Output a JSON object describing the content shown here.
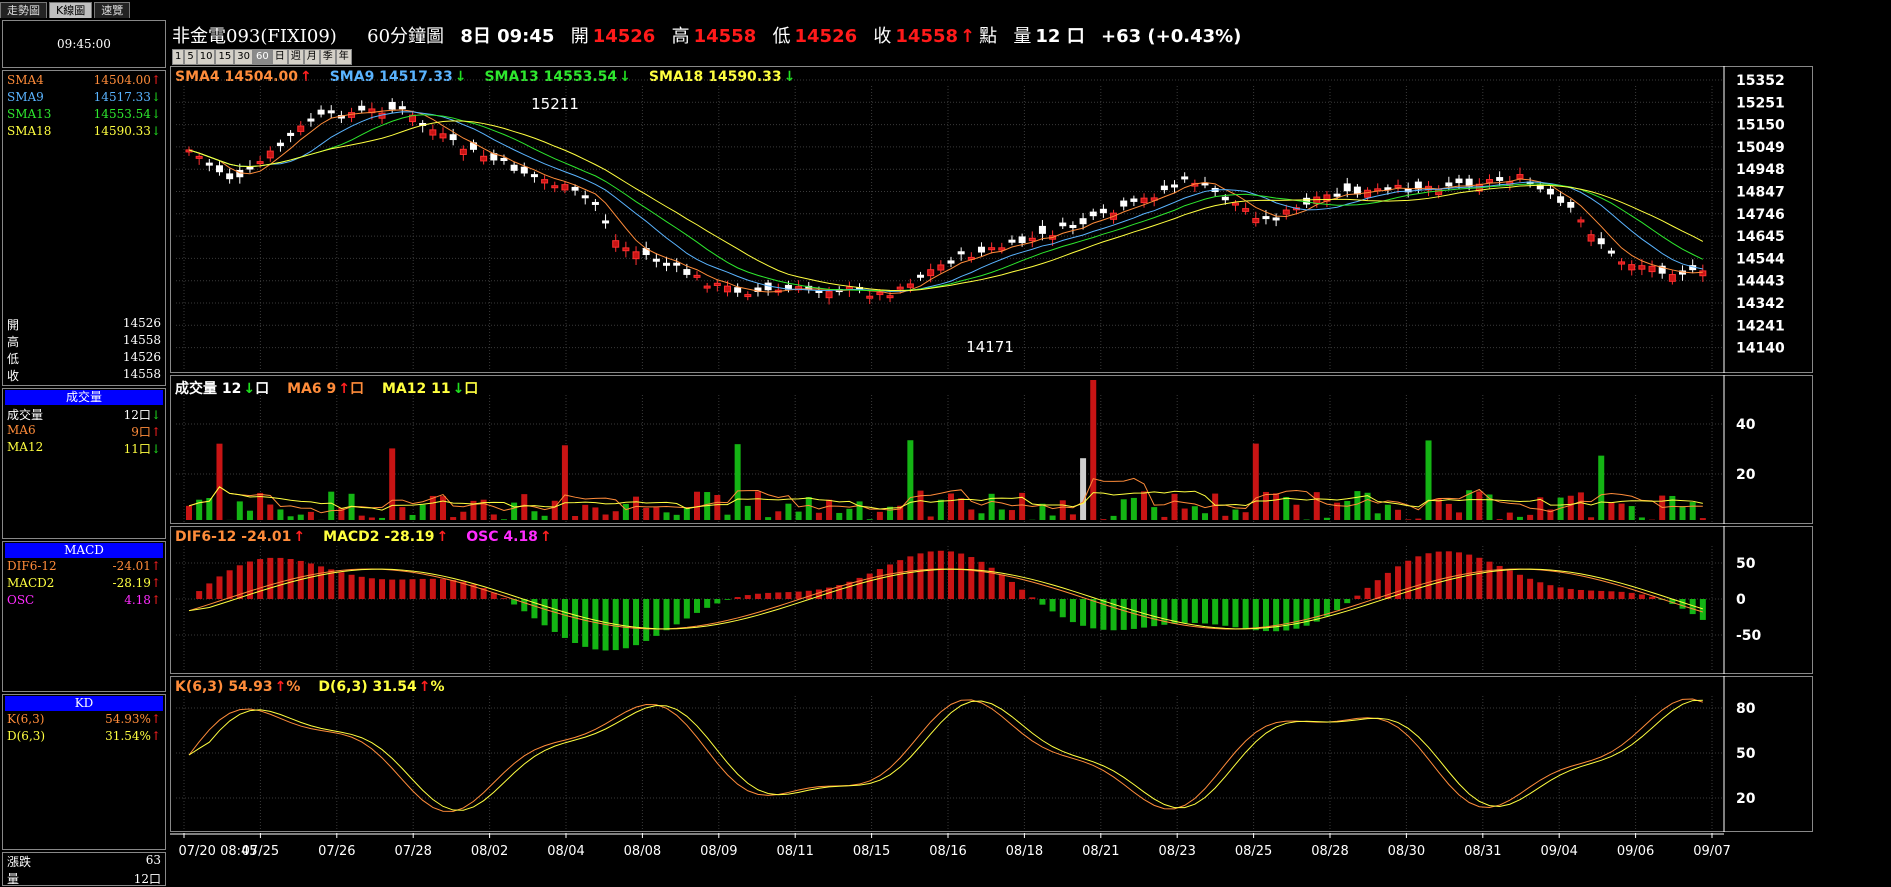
{
  "tabs": [
    {
      "label": "走勢圖",
      "active": false
    },
    {
      "label": "K線圖",
      "active": true
    },
    {
      "label": "速覽",
      "active": false
    }
  ],
  "left": {
    "time": "09:45:00",
    "sma": [
      {
        "label": "SMA4",
        "value": "14504.00",
        "dir": "up",
        "color": "#ff8c3a"
      },
      {
        "label": "SMA9",
        "value": "14517.33",
        "dir": "down",
        "color": "#5ab4ff"
      },
      {
        "label": "SMA13",
        "value": "14553.54",
        "dir": "down",
        "color": "#2ee82e"
      },
      {
        "label": "SMA18",
        "value": "14590.33",
        "dir": "down",
        "color": "#ffff40"
      }
    ],
    "ohlc": [
      {
        "label": "開",
        "value": "14526"
      },
      {
        "label": "高",
        "value": "14558"
      },
      {
        "label": "低",
        "value": "14526"
      },
      {
        "label": "收",
        "value": "14558"
      }
    ],
    "volume": {
      "header": "成交量",
      "rows": [
        {
          "label": "成交量",
          "value": "12口",
          "dir": "down",
          "color": "#ffffff"
        },
        {
          "label": "MA6",
          "value": "9口",
          "dir": "up",
          "color": "#ff8c3a"
        },
        {
          "label": "MA12",
          "value": "11口",
          "dir": "down",
          "color": "#ffff40"
        }
      ]
    },
    "macd": {
      "header": "MACD",
      "rows": [
        {
          "label": "DIF6-12",
          "value": "-24.01",
          "dir": "up",
          "color": "#ff8c3a"
        },
        {
          "label": "MACD2",
          "value": "-28.19",
          "dir": "up",
          "color": "#ffff40"
        },
        {
          "label": "OSC",
          "value": "4.18",
          "dir": "up",
          "color": "#ff2cff"
        }
      ]
    },
    "kd": {
      "header": "KD",
      "rows": [
        {
          "label": "K(6,3)",
          "value": "54.93%",
          "dir": "up",
          "color": "#ff8c3a"
        },
        {
          "label": "D(6,3)",
          "value": "31.54%",
          "dir": "up",
          "color": "#ffff40"
        }
      ]
    },
    "bottom": [
      {
        "label": "漲跌",
        "value": "63"
      },
      {
        "label": "量",
        "value": "12口"
      }
    ]
  },
  "header": {
    "symbol": "非金電093(FIXI09)",
    "period": "60分鐘圖",
    "day_time": "8日 09:45",
    "open_label": "開",
    "open": "14526",
    "high_label": "高",
    "high": "14558",
    "low_label": "低",
    "low": "14526",
    "close_label": "收",
    "close": "14558",
    "points_label": "點",
    "vol_label": "量",
    "vol": "12 口",
    "change": "+63 (+0.43%)"
  },
  "period_buttons": [
    "1",
    "5",
    "10",
    "15",
    "30",
    "60",
    "日",
    "週",
    "月",
    "季",
    "年"
  ],
  "period_active": "60",
  "price_panel": {
    "legend": [
      {
        "text": "SMA4 14504.00",
        "dir": "up",
        "color": "#ff8c3a"
      },
      {
        "text": "SMA9 14517.33",
        "dir": "down",
        "color": "#5ab4ff"
      },
      {
        "text": "SMA13 14553.54",
        "dir": "down",
        "color": "#2ee82e"
      },
      {
        "text": "SMA18 14590.33",
        "dir": "down",
        "color": "#ffff40"
      }
    ],
    "yticks": [
      "15352",
      "15251",
      "15150",
      "15049",
      "14948",
      "14847",
      "14746",
      "14645",
      "14544",
      "14443",
      "14342",
      "14241",
      "14140"
    ],
    "high_label": "15211",
    "low_label": "14171"
  },
  "volume_panel": {
    "legend": [
      {
        "text": "成交量 12",
        "dir": "down",
        "suffix": "口",
        "color": "#ffffff"
      },
      {
        "text": "MA6 9",
        "dir": "up",
        "suffix": "口",
        "color": "#ff8c3a"
      },
      {
        "text": "MA12 11",
        "dir": "down",
        "suffix": "口",
        "color": "#ffff40"
      }
    ],
    "yticks": [
      "40",
      "20"
    ]
  },
  "macd_panel": {
    "legend": [
      {
        "text": "DIF6-12 -24.01",
        "dir": "up",
        "color": "#ff8c3a"
      },
      {
        "text": "MACD2 -28.19",
        "dir": "up",
        "color": "#ffff40"
      },
      {
        "text": "OSC 4.18",
        "dir": "up",
        "color": "#ff2cff"
      }
    ],
    "yticks": [
      "50",
      "0",
      "-50"
    ]
  },
  "kd_panel": {
    "legend": [
      {
        "text": "K(6,3) 54.93",
        "dir": "up",
        "suffix": "%",
        "color": "#ff8c3a"
      },
      {
        "text": "D(6,3) 31.54",
        "dir": "up",
        "suffix": "%",
        "color": "#ffff40"
      }
    ],
    "yticks": [
      "80",
      "50",
      "20"
    ]
  },
  "x_labels": [
    "07/20 08:45",
    "07/25",
    "07/26",
    "07/28",
    "08/02",
    "08/04",
    "08/08",
    "08/09",
    "08/11",
    "08/15",
    "08/16",
    "08/18",
    "08/21",
    "08/23",
    "08/25",
    "08/28",
    "08/30",
    "08/31",
    "09/04",
    "09/06",
    "09/07"
  ],
  "colors": {
    "up": "#c81414",
    "down": "#14b414",
    "grid": "#3a3a3a",
    "axis": "#ffffff"
  }
}
